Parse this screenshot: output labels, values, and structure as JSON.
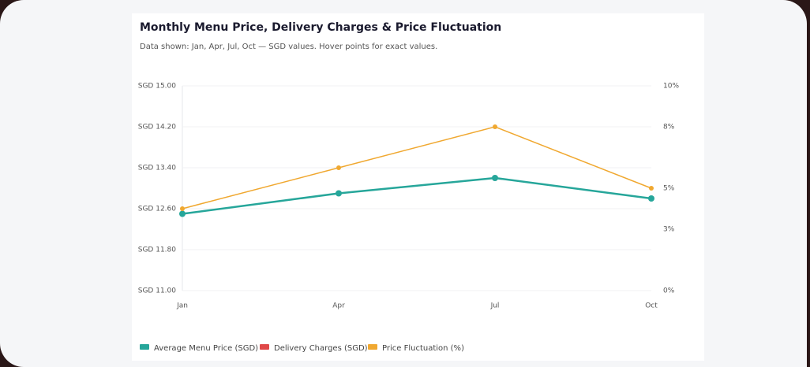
{
  "chart_data": {
    "type": "line",
    "title": "Monthly Menu Price, Delivery Charges & Price Fluctuation",
    "subtitle": "Data shown: Jan, Apr, Jul, Oct — SGD values. Hover points for exact values.",
    "categories": [
      "Jan",
      "Apr",
      "Jul",
      "Oct"
    ],
    "series": [
      {
        "name": "Average Menu Price (SGD)",
        "color": "#26a69a",
        "values": [
          12.5,
          12.9,
          13.2,
          12.8
        ]
      },
      {
        "name": "Delivery Charges (SGD)",
        "color": "#e04848",
        "values": [
          null,
          null,
          null,
          null
        ]
      },
      {
        "name": "Price Fluctuation (%)",
        "color": "#f0a830",
        "values": [
          4,
          6,
          8,
          5
        ],
        "axis": "y2"
      }
    ],
    "ylim": [
      11,
      15
    ],
    "yticks": [
      {
        "value": 11,
        "label": "SGD 11.00"
      },
      {
        "value": 11.8,
        "label": "SGD 11.80"
      },
      {
        "value": 12.6,
        "label": "SGD 12.60"
      },
      {
        "value": 13.4,
        "label": "SGD 13.40"
      },
      {
        "value": 14.2,
        "label": "SGD 14.20"
      },
      {
        "value": 15,
        "label": "SGD 15.00"
      }
    ],
    "y2lim": [
      0,
      10
    ],
    "y2ticks": [
      {
        "value": 0,
        "label": "0%"
      },
      {
        "value": 3,
        "label": "3%"
      },
      {
        "value": 5,
        "label": "5%"
      },
      {
        "value": 8,
        "label": "8%"
      },
      {
        "value": 10,
        "label": "10%"
      }
    ],
    "grid": true,
    "legend": "bottom"
  }
}
